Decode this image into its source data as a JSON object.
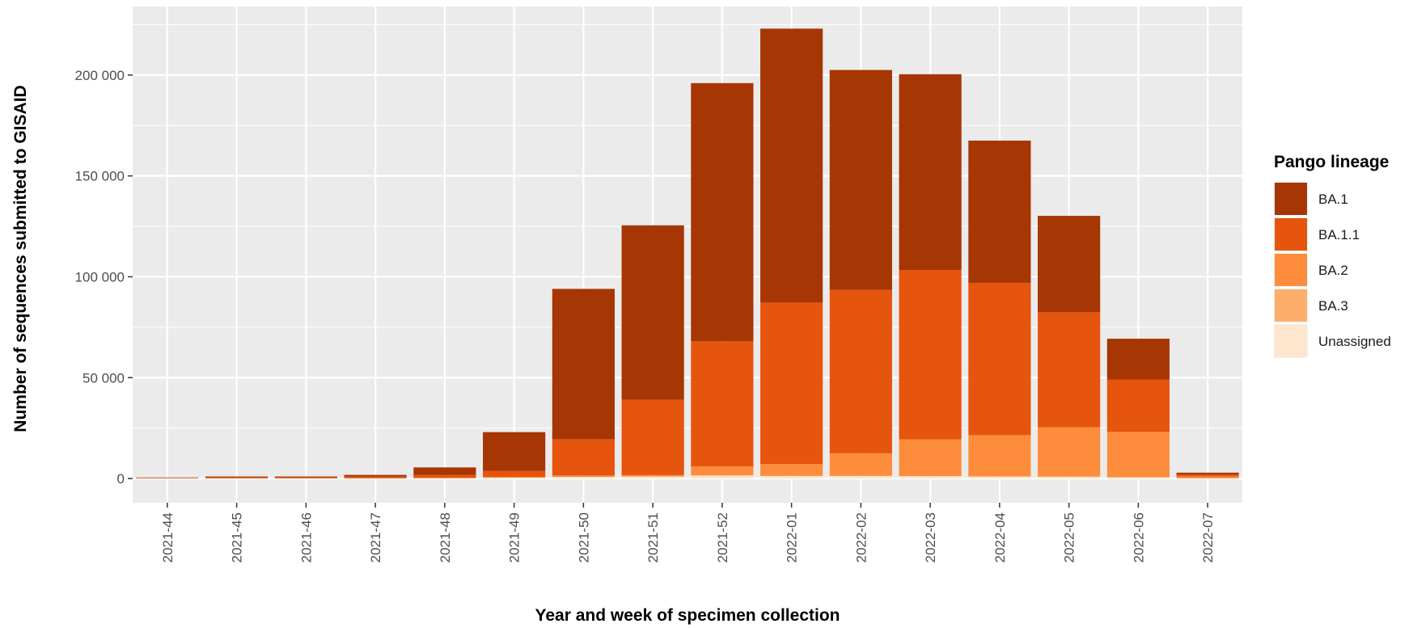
{
  "chart_data": {
    "type": "bar",
    "stacked": true,
    "title": "",
    "xlabel": "Year and week of specimen collection",
    "ylabel": "Number of sequences submitted to GISAID",
    "ylim": [
      -12000,
      234000
    ],
    "yticks": [
      0,
      50000,
      100000,
      150000,
      200000
    ],
    "ytick_labels": [
      "0",
      "50 000",
      "100 000",
      "150 000",
      "200 000"
    ],
    "grid": true,
    "legend_title": "Pango lineage",
    "legend_position": "right",
    "categories": [
      "2021-44",
      "2021-45",
      "2021-46",
      "2021-47",
      "2021-48",
      "2021-49",
      "2021-50",
      "2021-51",
      "2021-52",
      "2022-01",
      "2022-02",
      "2022-03",
      "2022-04",
      "2022-05",
      "2022-06",
      "2022-07"
    ],
    "series": [
      {
        "name": "Unassigned",
        "color": "#FEE6CE",
        "values": [
          100,
          100,
          100,
          100,
          200,
          400,
          800,
          1000,
          1500,
          1300,
          1300,
          1200,
          1000,
          900,
          600,
          100
        ]
      },
      {
        "name": "BA.3",
        "color": "#FDAE6B",
        "values": [
          0,
          0,
          0,
          0,
          0,
          0,
          0,
          0,
          0,
          0,
          0,
          0,
          0,
          0,
          0,
          0
        ]
      },
      {
        "name": "BA.2",
        "color": "#FD8D3C",
        "values": [
          0,
          0,
          0,
          0,
          100,
          400,
          700,
          700,
          4500,
          5900,
          11200,
          18200,
          20500,
          24500,
          22500,
          900
        ]
      },
      {
        "name": "BA.1.1",
        "color": "#E6550D",
        "values": [
          200,
          500,
          500,
          800,
          1500,
          3000,
          18000,
          37300,
          62000,
          80000,
          81000,
          84000,
          75500,
          57000,
          26000,
          900
        ]
      },
      {
        "name": "BA.1",
        "color": "#A63603",
        "values": [
          200,
          400,
          400,
          900,
          3700,
          19200,
          74500,
          86500,
          128000,
          135800,
          109000,
          97000,
          70500,
          47800,
          20200,
          1000
        ]
      }
    ]
  },
  "legend_order": [
    "BA.1",
    "BA.1.1",
    "BA.2",
    "BA.3",
    "Unassigned"
  ]
}
